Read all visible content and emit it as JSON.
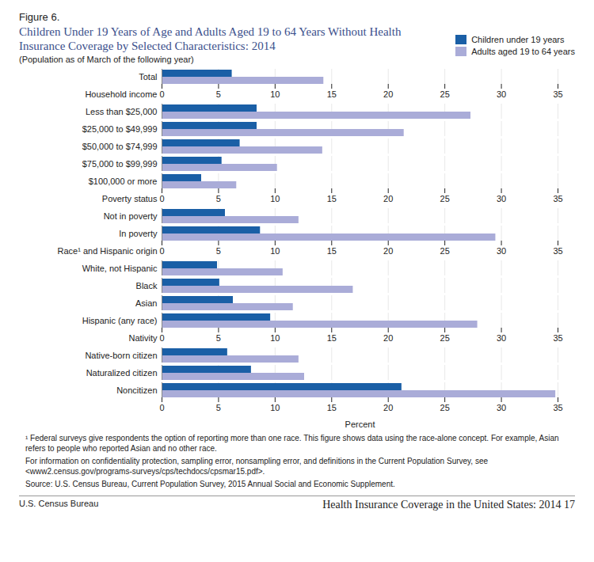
{
  "chart_data": {
    "type": "bar",
    "orientation": "horizontal",
    "figure_label": "Figure 6.",
    "title": "Children Under 19 Years of Age and Adults Aged 19 to 64 Years Without Health Insurance Coverage by Selected Characteristics: 2014",
    "subtitle": "(Population as of March of the following year)",
    "x_label": "Percent",
    "categories": [
      "Total",
      "Household income",
      "Less than $25,000",
      "$25,000 to $49,999",
      "$50,000 to $74,999",
      "$75,000 to $99,999",
      "$100,000 or more",
      "Poverty status",
      "Not in poverty",
      "In poverty",
      "Race¹ and Hispanic origin",
      "White, not Hispanic",
      "Black",
      "Asian",
      "Hispanic (any race)",
      "Nativity",
      "Native-born citizen",
      "Naturalized citizen",
      "Noncitizen"
    ],
    "series": [
      {
        "name": "Children under 19 years",
        "color": "#1a5fa6",
        "values": [
          6.2,
          null,
          8.4,
          8.4,
          6.9,
          5.3,
          3.5,
          null,
          5.6,
          8.7,
          null,
          4.9,
          5.1,
          6.3,
          9.6,
          null,
          5.8,
          7.9,
          21.2
        ]
      },
      {
        "name": "Adults aged 19 to 64 years",
        "color": "#aaacd8",
        "values": [
          14.3,
          null,
          27.3,
          21.4,
          14.2,
          10.2,
          6.6,
          null,
          12.1,
          29.5,
          null,
          10.7,
          16.9,
          11.6,
          27.9,
          null,
          12.1,
          12.6,
          34.8
        ]
      }
    ],
    "xlim": [
      0,
      35
    ],
    "xticks": [
      0,
      5,
      10,
      15,
      20,
      25,
      30,
      35
    ],
    "grid": true,
    "legend": "top-right",
    "notes": [
      "¹ Federal surveys give respondents the option of reporting more than one race. This figure shows data using the race-alone concept. For example, Asian refers to people who reported Asian and no other race.",
      "For information on confidentiality protection, sampling error, nonsampling error, and definitions in the Current Population Survey, see <www2.census.gov/programs-surveys/cps/techdocs/cpsmar15.pdf>.",
      "Source: U.S. Census Bureau, Current Population Survey, 2015 Annual Social and Economic Supplement."
    ],
    "footer_left": "U.S. Census Bureau",
    "footer_right": "Health Insurance Coverage in the United States: 2014 17"
  }
}
